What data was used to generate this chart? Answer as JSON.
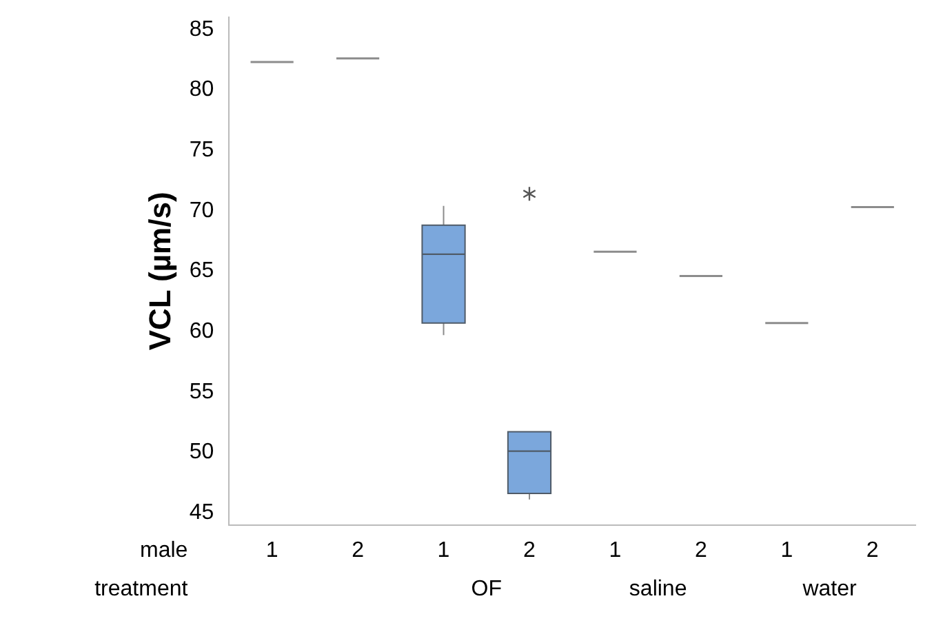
{
  "chart_data": {
    "type": "box",
    "ylabel": "VCL (µm/s)",
    "xlabel": "male",
    "annotations": [
      "treatment",
      "OF",
      "saline",
      "water"
    ],
    "categories": [
      "1",
      "2",
      "1",
      "2",
      "1",
      "2",
      "1",
      "2"
    ],
    "colors": [
      "#8c8c8c",
      "#8c8c8c",
      "#7ba7dc",
      "#7ba7dc",
      "#8c8c8c",
      "#8c8c8c",
      "#8c8c8c",
      "#8c8c8c"
    ],
    "boxes": [
      {
        "low": 82.3,
        "q1": 82.3,
        "median": 82.3,
        "q3": 82.3,
        "high": 82.3
      },
      {
        "low": 82.6,
        "q1": 82.6,
        "median": 82.6,
        "q3": 82.6,
        "high": 82.6
      },
      {
        "low": 59.7,
        "q1": 60.7,
        "median": 66.4,
        "q3": 68.8,
        "high": 70.4
      },
      {
        "low": 46.1,
        "q1": 46.6,
        "median": 50.1,
        "q3": 51.7,
        "high": 51.7,
        "outliers": [
          71.4
        ]
      },
      {
        "low": 66.6,
        "q1": 66.6,
        "median": 66.6,
        "q3": 66.6,
        "high": 66.6
      },
      {
        "low": 64.6,
        "q1": 64.6,
        "median": 64.6,
        "q3": 64.6,
        "high": 64.6
      },
      {
        "low": 60.7,
        "q1": 60.7,
        "median": 60.7,
        "q3": 60.7,
        "high": 60.7
      },
      {
        "low": 70.3,
        "q1": 70.3,
        "median": 70.3,
        "q3": 70.3,
        "high": 70.3
      }
    ],
    "ylim": [
      44,
      86
    ],
    "yticks": [
      45,
      50,
      55,
      60,
      65,
      70,
      75,
      80,
      85
    ],
    "grid": false,
    "legend": false
  }
}
